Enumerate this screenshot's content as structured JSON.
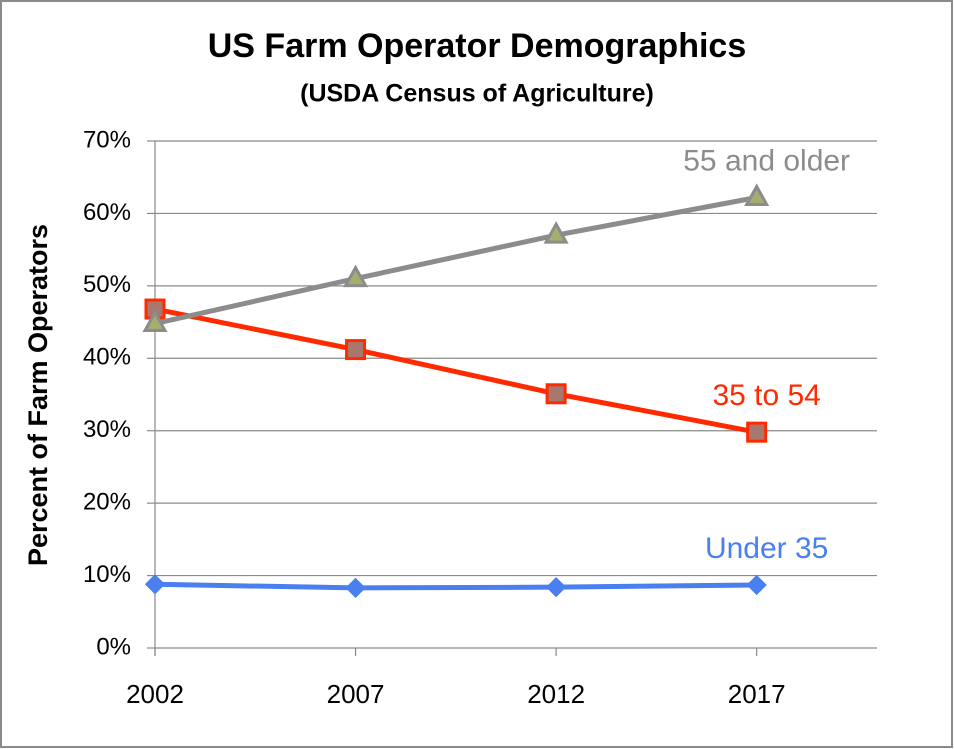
{
  "chart_data": {
    "type": "line",
    "title": "US Farm Operator Demographics",
    "subtitle": "(USDA Census of Agriculture)",
    "y_label": "Percent of Farm Operators",
    "x": [
      2002,
      2007,
      2012,
      2017
    ],
    "xlim": [
      2002,
      2020
    ],
    "xticks": [
      2002,
      2007,
      2012,
      2017
    ],
    "ylim": [
      0,
      70
    ],
    "yticks": [
      {
        "value": 0,
        "label": "0%"
      },
      {
        "value": 10,
        "label": "10%"
      },
      {
        "value": 20,
        "label": "20%"
      },
      {
        "value": 30,
        "label": "30%"
      },
      {
        "value": 40,
        "label": "40%"
      },
      {
        "value": 50,
        "label": "50%"
      },
      {
        "value": 60,
        "label": "60%"
      },
      {
        "value": 70,
        "label": "70%"
      }
    ],
    "grid": true,
    "series": [
      {
        "name": "Under 35",
        "color": "#4a7ff0",
        "marker": "diamond",
        "values": [
          8.8,
          8.3,
          8.4,
          8.7
        ]
      },
      {
        "name": "35 to 54",
        "color": "#ff2a00",
        "marker": "square",
        "values": [
          46.8,
          41.2,
          35.1,
          29.8
        ]
      },
      {
        "name": "55 and older",
        "color": "#8c8c8c",
        "marker": "triangle",
        "values": [
          44.8,
          51.0,
          57.0,
          62.2
        ]
      }
    ]
  }
}
